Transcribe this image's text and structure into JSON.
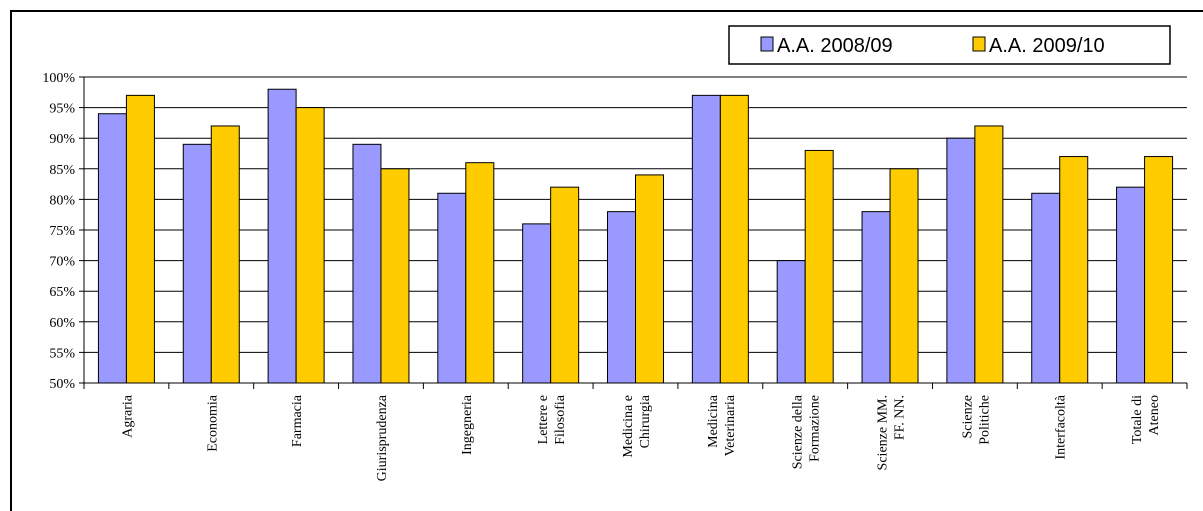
{
  "chart_data": {
    "type": "bar",
    "categories": [
      [
        "Agraria"
      ],
      [
        "Economia"
      ],
      [
        "Farmacia"
      ],
      [
        "Giurisprudenza"
      ],
      [
        "Ingegneria"
      ],
      [
        "Lettere e",
        "Filosofia"
      ],
      [
        "Medicina e",
        "Chirurgia"
      ],
      [
        "Medicina",
        "Veterinaria"
      ],
      [
        "Scienze della",
        "Formazione"
      ],
      [
        "Scienze MM.",
        "FF. NN."
      ],
      [
        "Scienze",
        "Politiche"
      ],
      [
        "Interfacoltà"
      ],
      [
        "Totale di",
        "Ateneo"
      ]
    ],
    "series": [
      {
        "name": "A.A. 2008/09",
        "color": "#9999ff",
        "values": [
          94,
          89,
          98,
          89,
          81,
          76,
          78,
          97,
          70,
          78,
          90,
          81,
          82
        ]
      },
      {
        "name": "A.A. 2009/10",
        "color": "#ffcc00",
        "values": [
          97,
          92,
          95,
          85,
          86,
          82,
          84,
          97,
          88,
          85,
          92,
          87,
          87
        ]
      }
    ],
    "yticks": [
      "50%",
      "55%",
      "60%",
      "65%",
      "70%",
      "75%",
      "80%",
      "85%",
      "90%",
      "95%",
      "100%"
    ],
    "ylim": [
      50,
      100
    ],
    "grid": true,
    "legend_position": "top-right"
  }
}
